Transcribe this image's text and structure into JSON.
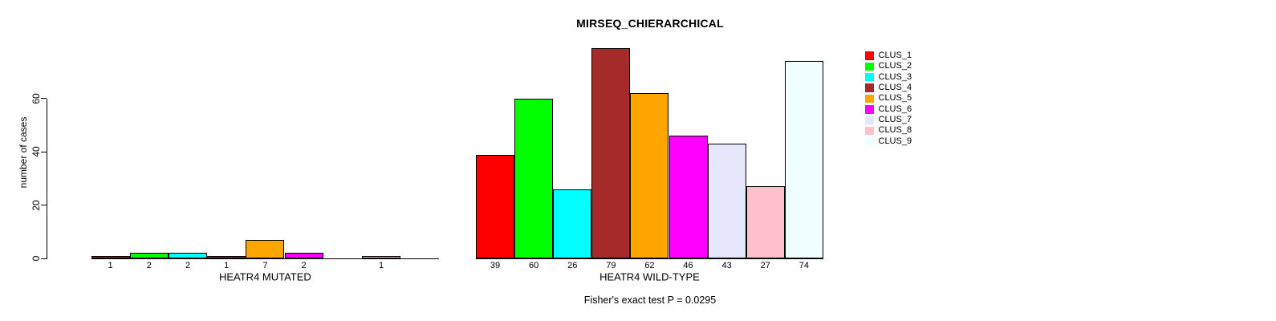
{
  "title": "MIRSEQ_CHIERARCHICAL",
  "ylabel": "number of cases",
  "footer": "Fisher's exact test P = 0.0295",
  "legend": {
    "position": "right",
    "entries": [
      {
        "label": "CLUS_1",
        "color": "#FF0000"
      },
      {
        "label": "CLUS_2",
        "color": "#00FF00"
      },
      {
        "label": "CLUS_3",
        "color": "#00FFFF"
      },
      {
        "label": "CLUS_4",
        "color": "#A52A2A"
      },
      {
        "label": "CLUS_5",
        "color": "#FFA500"
      },
      {
        "label": "CLUS_6",
        "color": "#FF00FF"
      },
      {
        "label": "CLUS_7",
        "color": "#E6E6FA"
      },
      {
        "label": "CLUS_8",
        "color": "#FFC0CB"
      },
      {
        "label": "CLUS_9",
        "color": "#F0FFFF"
      }
    ]
  },
  "chart_data": [
    {
      "type": "bar",
      "id": "mutated",
      "title": "MIRSEQ_CHIERARCHICAL",
      "xlabel": "HEATR4 MUTATED",
      "ylabel": "number of cases",
      "categories": [
        "CLUS_1",
        "CLUS_2",
        "CLUS_3",
        "CLUS_4",
        "CLUS_5",
        "CLUS_6",
        "CLUS_7",
        "CLUS_8",
        "CLUS_9"
      ],
      "values": [
        1,
        2,
        2,
        1,
        7,
        2,
        0,
        1,
        0
      ],
      "bar_labels": [
        "1",
        "2",
        "2",
        "1",
        "7",
        "2",
        "",
        "1",
        ""
      ],
      "colors": [
        "#FF0000",
        "#00FF00",
        "#00FFFF",
        "#A52A2A",
        "#FFA500",
        "#FF00FF",
        "#E6E6FA",
        "#FFC0CB",
        "#F0FFFF"
      ],
      "ylim": [
        0,
        80
      ],
      "yticks": [
        0,
        20,
        40,
        60
      ],
      "show_y_axis": true,
      "grid": false
    },
    {
      "type": "bar",
      "id": "wild-type",
      "xlabel": "HEATR4 WILD-TYPE",
      "categories": [
        "CLUS_1",
        "CLUS_2",
        "CLUS_3",
        "CLUS_4",
        "CLUS_5",
        "CLUS_6",
        "CLUS_7",
        "CLUS_8",
        "CLUS_9"
      ],
      "values": [
        39,
        60,
        26,
        79,
        62,
        46,
        43,
        27,
        74
      ],
      "bar_labels": [
        "39",
        "60",
        "26",
        "79",
        "62",
        "46",
        "43",
        "27",
        "74"
      ],
      "colors": [
        "#FF0000",
        "#00FF00",
        "#00FFFF",
        "#A52A2A",
        "#FFA500",
        "#FF00FF",
        "#E6E6FA",
        "#FFC0CB",
        "#F0FFFF"
      ],
      "ylim": [
        0,
        80
      ],
      "yticks": [
        0,
        20,
        40,
        60
      ],
      "show_y_axis": false,
      "grid": false
    }
  ]
}
